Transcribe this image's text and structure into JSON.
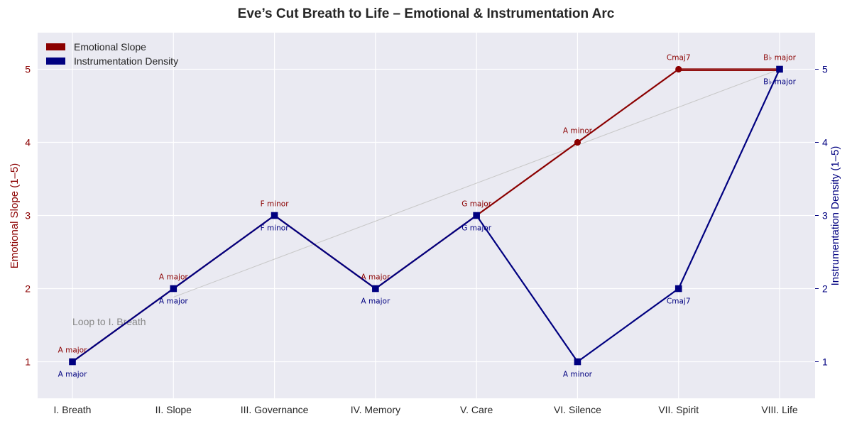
{
  "chart_data": {
    "type": "line",
    "title": "Eve’s Cut Breath to Life – Emotional & Instrumentation Arc",
    "categories": [
      "I. Breath",
      "II. Slope",
      "III. Governance",
      "IV. Memory",
      "V. Care",
      "VI. Silence",
      "VII. Spirit",
      "VIII. Life"
    ],
    "ylabel_left": "Emotional Slope (1–5)",
    "ylabel_right": "Instrumentation Density (1–5)",
    "ylim": [
      0.5,
      5.5
    ],
    "yticks": [
      1,
      2,
      3,
      4,
      5
    ],
    "grid": true,
    "legend_position": "top-left",
    "annotation": "Loop to I. Breath",
    "series": [
      {
        "name": "Emotional Slope",
        "axis": "left",
        "color": "#8B0000",
        "marker": "circle",
        "values": [
          1,
          2,
          3,
          2,
          3,
          4,
          5,
          5
        ],
        "labels": [
          "A major",
          "A major",
          "F minor",
          "A major",
          "G major",
          "A minor",
          "Cmaj7",
          "B♭ major"
        ]
      },
      {
        "name": "Instrumentation Density",
        "axis": "right",
        "color": "#000080",
        "marker": "square",
        "values": [
          1,
          2,
          3,
          2,
          3,
          1,
          2,
          5
        ],
        "labels": [
          "A major",
          "A major",
          "F minor",
          "A major",
          "G major",
          "A minor",
          "Cmaj7",
          "B♭ major"
        ]
      }
    ]
  }
}
